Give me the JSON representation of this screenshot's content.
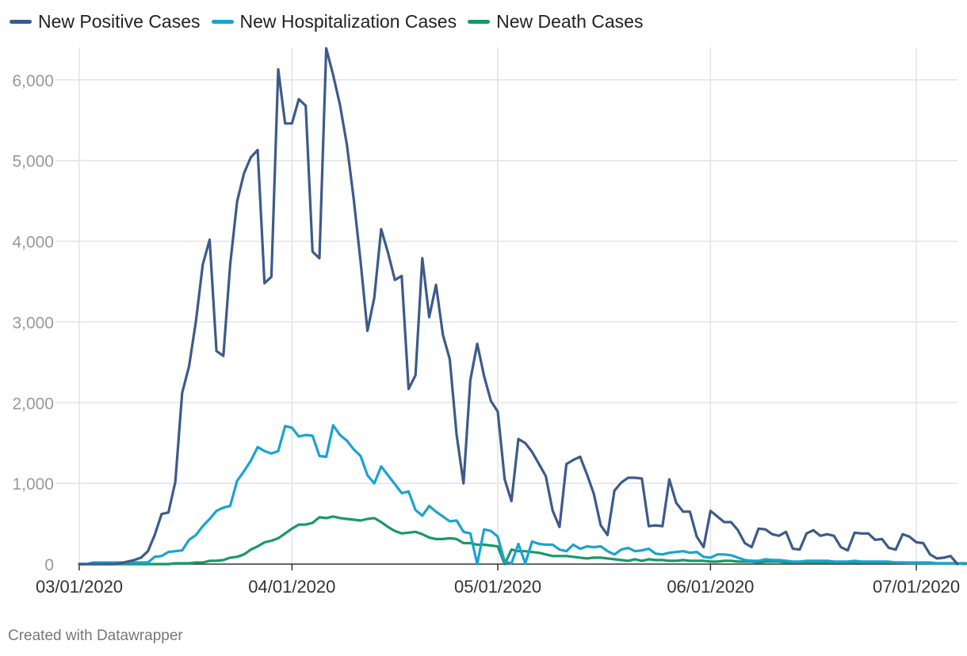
{
  "chart_data": {
    "type": "line",
    "title": "",
    "xlabel": "",
    "ylabel": "",
    "ylim": [
      0,
      6400
    ],
    "y_ticks": [
      0,
      1000,
      2000,
      3000,
      4000,
      5000,
      6000
    ],
    "y_tick_labels": [
      "0",
      "1,000",
      "2,000",
      "3,000",
      "4,000",
      "5,000",
      "6,000"
    ],
    "x_start": "2020-03-01",
    "x_end": "2020-07-07",
    "x_ticks": [
      {
        "day": 0,
        "label": "03/01/2020"
      },
      {
        "day": 31,
        "label": "04/01/2020"
      },
      {
        "day": 61,
        "label": "05/01/2020"
      },
      {
        "day": 92,
        "label": "06/01/2020"
      },
      {
        "day": 122,
        "label": "07/01/2020"
      }
    ],
    "series": [
      {
        "name": "New Positive Cases",
        "color": "#3d5a8a",
        "values": [
          0,
          0,
          0,
          0,
          0,
          0,
          10,
          30,
          50,
          80,
          160,
          360,
          620,
          640,
          1020,
          2120,
          2450,
          3010,
          3710,
          4020,
          2640,
          2580,
          3710,
          4490,
          4840,
          5040,
          5130,
          3480,
          3560,
          6130,
          5460,
          5460,
          5760,
          5680,
          3870,
          3790,
          6390,
          6060,
          5690,
          5200,
          4520,
          3750,
          2890,
          3300,
          4150,
          3860,
          3520,
          3570,
          2170,
          2340,
          3790,
          3060,
          3460,
          2840,
          2540,
          1600,
          1000,
          2280,
          2730,
          2330,
          2020,
          1890,
          1050,
          780,
          1550,
          1500,
          1390,
          1240,
          1090,
          660,
          460,
          1240,
          1290,
          1330,
          1110,
          870,
          480,
          360,
          910,
          1010,
          1070,
          1070,
          1060,
          470,
          480,
          470,
          1050,
          760,
          650,
          650,
          340,
          210,
          660,
          590,
          520,
          520,
          420,
          260,
          210,
          440,
          430,
          370,
          350,
          400,
          190,
          180,
          380,
          420,
          350,
          370,
          350,
          210,
          170,
          390,
          380,
          380,
          300,
          310,
          200,
          180,
          370,
          340,
          270,
          260,
          120,
          70,
          80,
          100,
          0
        ],
        "end_label": ""
      },
      {
        "name": "New Hospitalization Cases",
        "color": "#1aa3d0",
        "values": [
          0,
          0,
          20,
          20,
          20,
          20,
          20,
          20,
          20,
          20,
          20,
          90,
          100,
          150,
          160,
          170,
          300,
          360,
          470,
          560,
          660,
          700,
          720,
          1030,
          1150,
          1280,
          1450,
          1400,
          1370,
          1400,
          1710,
          1690,
          1580,
          1600,
          1590,
          1340,
          1330,
          1720,
          1600,
          1530,
          1420,
          1340,
          1100,
          1000,
          1210,
          1100,
          990,
          880,
          900,
          670,
          600,
          720,
          650,
          590,
          530,
          540,
          400,
          380,
          0,
          430,
          410,
          340,
          30,
          10,
          250,
          10,
          280,
          250,
          240,
          240,
          180,
          160,
          240,
          190,
          220,
          210,
          220,
          160,
          120,
          180,
          200,
          160,
          170,
          190,
          130,
          120,
          140,
          150,
          160,
          140,
          150,
          90,
          80,
          120,
          120,
          110,
          80,
          50,
          40,
          40,
          60,
          50,
          50,
          40,
          30,
          30,
          40,
          40,
          40,
          40,
          30,
          30,
          30,
          40,
          30,
          30,
          30,
          30,
          30,
          20,
          20,
          20,
          20,
          20,
          20,
          10,
          10,
          10,
          10,
          0
        ]
      },
      {
        "name": "New Death Cases",
        "color": "#1a9868",
        "values": [
          0,
          0,
          0,
          0,
          0,
          0,
          0,
          0,
          0,
          0,
          0,
          0,
          0,
          0,
          10,
          10,
          10,
          20,
          20,
          40,
          40,
          50,
          80,
          90,
          120,
          180,
          220,
          270,
          290,
          320,
          380,
          440,
          490,
          490,
          510,
          580,
          570,
          590,
          570,
          560,
          550,
          540,
          560,
          570,
          520,
          460,
          410,
          380,
          390,
          400,
          370,
          330,
          310,
          310,
          320,
          310,
          260,
          260,
          240,
          240,
          230,
          220,
          0,
          180,
          160,
          160,
          150,
          140,
          120,
          100,
          100,
          100,
          90,
          80,
          70,
          80,
          80,
          70,
          60,
          50,
          40,
          60,
          40,
          60,
          50,
          50,
          40,
          40,
          50,
          40,
          40,
          40,
          30,
          30,
          40,
          40,
          30,
          30,
          30,
          20,
          30,
          30,
          30,
          20,
          20,
          20,
          20,
          20,
          20,
          20,
          20,
          20,
          20,
          20,
          20,
          20,
          20,
          20,
          20,
          20,
          20,
          10,
          10,
          10,
          10,
          10,
          10,
          10,
          10,
          10,
          0
        ]
      }
    ],
    "legend_position": "top-left",
    "grid": true
  },
  "footer": {
    "credit": "Created with Datawrapper"
  }
}
